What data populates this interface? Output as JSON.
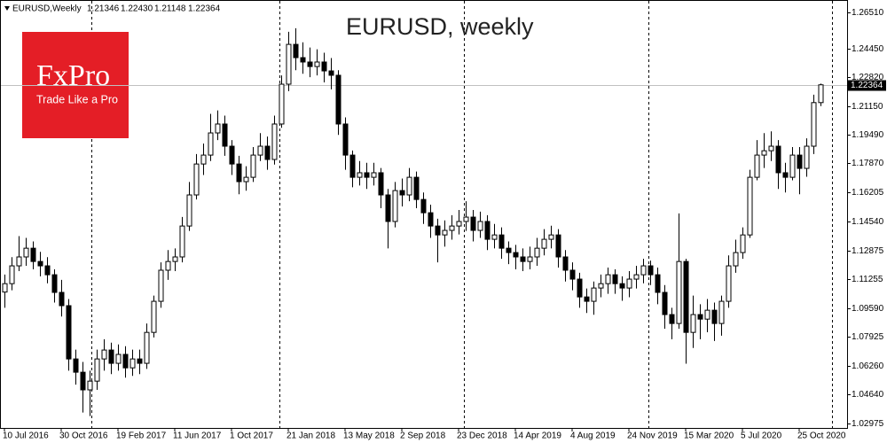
{
  "chart_data": {
    "type": "candlestick",
    "title": "EURUSD, weekly",
    "header": {
      "symbol": "EURUSD,Weekly",
      "ohlc": [
        "1.21346",
        "1.22430",
        "1.21148",
        "1.22364"
      ]
    },
    "logo": {
      "brand": "FxPro",
      "slogan": "Trade Like a Pro"
    },
    "last_price": 1.22364,
    "ylim": [
      1.0272,
      1.2722
    ],
    "yticks": [
      {
        "value": 1.2651,
        "label": "1.26510"
      },
      {
        "value": 1.2445,
        "label": "1.24450"
      },
      {
        "value": 1.2282,
        "label": "1.22820"
      },
      {
        "value": 1.2115,
        "label": "1.21150"
      },
      {
        "value": 1.1949,
        "label": "1.19490"
      },
      {
        "value": 1.1787,
        "label": "1.17870"
      },
      1.16205,
      {
        "value": 1.1454,
        "label": "1.14540"
      },
      1.12875,
      1.11255,
      {
        "value": 1.0959,
        "label": "1.09590"
      },
      1.07925,
      {
        "value": 1.0626,
        "label": "1.06260"
      },
      {
        "value": 1.0464,
        "label": "1.04640"
      },
      1.02975
    ],
    "up_color": "#ffffff",
    "down_color": "#000000",
    "categories": [
      "10 Jul 2016",
      null,
      null,
      null,
      null,
      null,
      null,
      null,
      "30 Oct 2016",
      null,
      null,
      null,
      null,
      null,
      null,
      null,
      "19 Feb 2017",
      null,
      null,
      null,
      null,
      null,
      null,
      null,
      "11 Jun 2017",
      null,
      null,
      null,
      null,
      null,
      null,
      null,
      "1 Oct 2017",
      null,
      null,
      null,
      null,
      null,
      null,
      null,
      "21 Jan 2018",
      null,
      null,
      null,
      null,
      null,
      null,
      null,
      "13 May 2018",
      null,
      null,
      null,
      null,
      null,
      null,
      null,
      "2 Sep 2018",
      null,
      null,
      null,
      null,
      null,
      null,
      null,
      "23 Dec 2018",
      null,
      null,
      null,
      null,
      null,
      null,
      null,
      "14 Apr 2019",
      null,
      null,
      null,
      null,
      null,
      null,
      null,
      "4 Aug 2019",
      null,
      null,
      null,
      null,
      null,
      null,
      null,
      "24 Nov 2019",
      null,
      null,
      null,
      null,
      null,
      null,
      null,
      "15 Mar 2020",
      null,
      null,
      null,
      null,
      null,
      null,
      null,
      "5 Jul 2020",
      null,
      null,
      null,
      null,
      null,
      null,
      null,
      "25 Oct 2020",
      null,
      null,
      null
    ],
    "open": [
      1.105,
      1.1098,
      1.12,
      1.1251,
      1.1301,
      1.1225,
      1.12,
      1.1149,
      1.1048,
      1.0972,
      1.0667,
      1.0591,
      1.049,
      1.054,
      1.0667,
      1.0718,
      1.0642,
      1.0693,
      1.0616,
      1.0667,
      1.0642,
      1.0819,
      1.0997,
      1.1175,
      1.1225,
      1.1251,
      1.1428,
      1.1606,
      1.1783,
      1.1834,
      1.1961,
      1.2012,
      1.1885,
      1.1783,
      1.1682,
      1.1707,
      1.1834,
      1.1885,
      1.1809,
      1.2012,
      1.224,
      1.2468,
      1.2392,
      1.2367,
      1.2341,
      1.2367,
      1.2316,
      1.2291,
      1.2012,
      1.1834,
      1.1707,
      1.1733,
      1.1707,
      1.1733,
      1.1606,
      1.1454,
      1.1631,
      1.1606,
      1.1707,
      1.158,
      1.1504,
      1.1428,
      1.1377,
      1.1403,
      1.1428,
      1.1454,
      1.1479,
      1.1403,
      1.1454,
      1.1352,
      1.1377,
      1.1301,
      1.1276,
      1.1251,
      1.1225,
      1.1251,
      1.1301,
      1.1352,
      1.1377,
      1.1251,
      1.1175,
      1.1124,
      1.1022,
      1.0997,
      1.1073,
      1.1098,
      1.1149,
      1.1098,
      1.1073,
      1.1124,
      1.1149,
      1.12,
      1.1149,
      1.1048,
      1.0921,
      1.087,
      1.1225,
      1.0819,
      1.0921,
      1.0895,
      1.0946,
      1.087,
      1.0997,
      1.12,
      1.1276,
      1.1377,
      1.1707,
      1.1834,
      1.1859,
      1.1885,
      1.1733,
      1.1707,
      1.1834,
      1.1758,
      1.1885,
      1.21346
    ],
    "high": [
      1.115,
      1.125,
      1.137,
      1.136,
      1.134,
      1.128,
      1.125,
      1.118,
      1.112,
      1.101,
      1.072,
      1.065,
      1.06,
      1.072,
      1.078,
      1.076,
      1.075,
      1.074,
      1.072,
      1.072,
      1.087,
      1.103,
      1.122,
      1.129,
      1.13,
      1.148,
      1.168,
      1.184,
      1.19,
      1.207,
      1.209,
      1.206,
      1.192,
      1.183,
      1.177,
      1.188,
      1.196,
      1.194,
      1.206,
      1.229,
      1.254,
      1.256,
      1.248,
      1.245,
      1.244,
      1.242,
      1.239,
      1.232,
      1.205,
      1.186,
      1.18,
      1.179,
      1.179,
      1.176,
      1.164,
      1.168,
      1.17,
      1.176,
      1.174,
      1.162,
      1.155,
      1.147,
      1.146,
      1.149,
      1.152,
      1.157,
      1.152,
      1.151,
      1.149,
      1.144,
      1.142,
      1.134,
      1.132,
      1.13,
      1.131,
      1.136,
      1.141,
      1.143,
      1.141,
      1.129,
      1.122,
      1.116,
      1.107,
      1.111,
      1.115,
      1.119,
      1.118,
      1.114,
      1.117,
      1.12,
      1.124,
      1.123,
      1.119,
      1.109,
      1.096,
      1.15,
      1.124,
      1.103,
      1.098,
      1.101,
      1.099,
      1.103,
      1.126,
      1.135,
      1.142,
      1.175,
      1.192,
      1.196,
      1.197,
      1.192,
      1.179,
      1.188,
      1.188,
      1.193,
      1.218,
      1.2243
    ],
    "low": [
      1.096,
      1.106,
      1.117,
      1.12,
      1.118,
      1.114,
      1.11,
      1.099,
      1.091,
      1.06,
      1.052,
      1.036,
      1.034,
      1.049,
      1.06,
      1.058,
      1.06,
      1.056,
      1.057,
      1.058,
      1.061,
      1.079,
      1.096,
      1.112,
      1.117,
      1.122,
      1.14,
      1.158,
      1.172,
      1.18,
      1.192,
      1.183,
      1.172,
      1.161,
      1.163,
      1.168,
      1.18,
      1.175,
      1.178,
      1.199,
      1.22,
      1.232,
      1.23,
      1.228,
      1.229,
      1.225,
      1.221,
      1.195,
      1.175,
      1.165,
      1.166,
      1.164,
      1.166,
      1.153,
      1.13,
      1.142,
      1.154,
      1.157,
      1.153,
      1.144,
      1.136,
      1.122,
      1.131,
      1.135,
      1.138,
      1.14,
      1.134,
      1.136,
      1.129,
      1.13,
      1.124,
      1.121,
      1.118,
      1.117,
      1.118,
      1.12,
      1.126,
      1.13,
      1.119,
      1.111,
      1.106,
      1.096,
      1.093,
      1.092,
      1.102,
      1.104,
      1.104,
      1.1,
      1.102,
      1.107,
      1.11,
      1.109,
      1.098,
      1.084,
      1.078,
      1.084,
      1.064,
      1.073,
      1.078,
      1.082,
      1.077,
      1.08,
      1.096,
      1.116,
      1.124,
      1.136,
      1.169,
      1.176,
      1.18,
      1.164,
      1.162,
      1.169,
      1.161,
      1.171,
      1.184,
      1.21148
    ],
    "close": [
      1.1098,
      1.12,
      1.1251,
      1.1301,
      1.1225,
      1.12,
      1.1149,
      1.1048,
      1.0972,
      1.0667,
      1.0591,
      1.049,
      1.054,
      1.0667,
      1.0718,
      1.0642,
      1.0693,
      1.0616,
      1.0667,
      1.0642,
      1.0819,
      1.0997,
      1.1175,
      1.1225,
      1.1251,
      1.1428,
      1.1606,
      1.1783,
      1.1834,
      1.1961,
      1.2012,
      1.1885,
      1.1783,
      1.1682,
      1.1707,
      1.1834,
      1.1885,
      1.1809,
      1.2012,
      1.224,
      1.2468,
      1.2392,
      1.2367,
      1.2341,
      1.2367,
      1.2316,
      1.2291,
      1.2012,
      1.1834,
      1.1707,
      1.1733,
      1.1707,
      1.1733,
      1.1606,
      1.1454,
      1.1631,
      1.1606,
      1.1707,
      1.158,
      1.1504,
      1.1428,
      1.1377,
      1.1403,
      1.1428,
      1.1454,
      1.1479,
      1.1403,
      1.1454,
      1.1352,
      1.1377,
      1.1301,
      1.1276,
      1.1251,
      1.1225,
      1.1251,
      1.1301,
      1.1352,
      1.1377,
      1.1251,
      1.1175,
      1.1124,
      1.1022,
      1.0997,
      1.1073,
      1.1098,
      1.1149,
      1.1098,
      1.1073,
      1.1124,
      1.1149,
      1.12,
      1.1149,
      1.1048,
      1.0921,
      1.087,
      1.1225,
      1.0819,
      1.0921,
      1.0895,
      1.0946,
      1.087,
      1.0997,
      1.12,
      1.1276,
      1.1377,
      1.1707,
      1.1834,
      1.1859,
      1.1885,
      1.1733,
      1.1707,
      1.1834,
      1.1758,
      1.1885,
      1.21346,
      1.22364
    ]
  }
}
